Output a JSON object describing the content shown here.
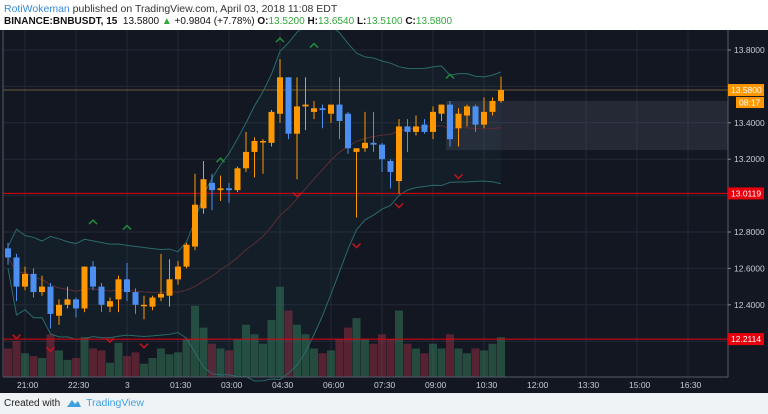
{
  "header": {
    "author": "RotiWokeman",
    "published": "published on TradingView.com, April 03, 2018 11:08 EDT",
    "symbol": "BINANCE:BNBUSDT, 15",
    "last": "13.5800",
    "change": "+0.9804 (+7.78%)",
    "o_label": "O:",
    "o": "13.5200",
    "h_label": "H:",
    "h": "13.6540",
    "l_label": "L:",
    "l": "13.5100",
    "c_label": "C:",
    "c": "13.5800"
  },
  "footer": {
    "created": "Created with",
    "brand": "TradingView"
  },
  "colors": {
    "up": "#ff9800",
    "down": "#4c8ff0",
    "bg": "#131722",
    "hline": "#e8000d",
    "price": "#ff9800"
  },
  "chart_data": {
    "type": "candlestick",
    "title": "BINANCE:BNBUSDT, 15",
    "ylim": [
      12.05,
      13.95
    ],
    "y_ticks": [
      "13.8000",
      "13.4000",
      "13.2000",
      "12.8000",
      "12.6000",
      "12.4000"
    ],
    "y_tick_values": [
      13.8,
      13.4,
      13.2,
      12.8,
      12.6,
      12.4
    ],
    "x_ticks": [
      "21:00",
      "22:30",
      "3",
      "01:30",
      "03:00",
      "04:30",
      "06:00",
      "07:30",
      "09:00",
      "10:30",
      "12:00",
      "13:30",
      "15:00",
      "16:30"
    ],
    "first_candle_time": "20:30",
    "interval_min": 15,
    "ohlc": [
      [
        12.71,
        12.74,
        12.62,
        12.66
      ],
      [
        12.66,
        12.68,
        12.42,
        12.5
      ],
      [
        12.5,
        12.61,
        12.48,
        12.57
      ],
      [
        12.57,
        12.6,
        12.44,
        12.47
      ],
      [
        12.47,
        12.56,
        12.45,
        12.5
      ],
      [
        12.5,
        12.52,
        12.27,
        12.35
      ],
      [
        12.34,
        12.43,
        12.29,
        12.4
      ],
      [
        12.4,
        12.5,
        12.38,
        12.43
      ],
      [
        12.43,
        12.44,
        12.33,
        12.38
      ],
      [
        12.38,
        12.61,
        12.36,
        12.61
      ],
      [
        12.61,
        12.64,
        12.48,
        12.5
      ],
      [
        12.5,
        12.52,
        12.36,
        12.4
      ],
      [
        12.39,
        12.44,
        12.36,
        12.42
      ],
      [
        12.43,
        12.56,
        12.36,
        12.54
      ],
      [
        12.54,
        12.63,
        12.42,
        12.47
      ],
      [
        12.47,
        12.49,
        12.35,
        12.4
      ],
      [
        12.4,
        12.45,
        12.32,
        12.4
      ],
      [
        12.39,
        12.45,
        12.37,
        12.44
      ],
      [
        12.44,
        12.68,
        12.42,
        12.46
      ],
      [
        12.45,
        12.65,
        12.39,
        12.54
      ],
      [
        12.54,
        12.64,
        12.51,
        12.61
      ],
      [
        12.61,
        12.74,
        12.6,
        12.73
      ],
      [
        12.72,
        13.12,
        12.7,
        12.95
      ],
      [
        12.93,
        13.19,
        12.9,
        13.09
      ],
      [
        13.07,
        13.12,
        12.92,
        13.03
      ],
      [
        13.03,
        13.11,
        12.97,
        13.04
      ],
      [
        13.04,
        13.07,
        12.96,
        13.03
      ],
      [
        13.03,
        13.16,
        13.02,
        13.15
      ],
      [
        13.15,
        13.35,
        13.13,
        13.24
      ],
      [
        13.24,
        13.32,
        13.1,
        13.3
      ],
      [
        13.3,
        13.31,
        13.12,
        13.3
      ],
      [
        13.29,
        13.47,
        13.27,
        13.46
      ],
      [
        13.45,
        13.75,
        13.4,
        13.65
      ],
      [
        13.65,
        13.65,
        13.31,
        13.34
      ],
      [
        13.34,
        13.65,
        13.09,
        13.49
      ],
      [
        13.49,
        13.65,
        13.36,
        13.5
      ],
      [
        13.46,
        13.52,
        13.42,
        13.48
      ],
      [
        13.48,
        13.5,
        13.37,
        13.47
      ],
      [
        13.45,
        13.5,
        13.4,
        13.5
      ],
      [
        13.5,
        13.65,
        13.31,
        13.41
      ],
      [
        13.45,
        13.46,
        13.23,
        13.26
      ],
      [
        13.24,
        13.26,
        12.88,
        13.26
      ],
      [
        13.26,
        13.46,
        13.24,
        13.29
      ],
      [
        13.29,
        13.46,
        13.24,
        13.28
      ],
      [
        13.28,
        13.29,
        13.13,
        13.2
      ],
      [
        13.19,
        13.2,
        13.04,
        13.13
      ],
      [
        13.08,
        13.42,
        13.01,
        13.38
      ],
      [
        13.38,
        13.42,
        13.24,
        13.35
      ],
      [
        13.35,
        13.44,
        13.33,
        13.38
      ],
      [
        13.39,
        13.42,
        13.34,
        13.35
      ],
      [
        13.35,
        13.49,
        13.31,
        13.46
      ],
      [
        13.45,
        13.5,
        13.41,
        13.5
      ],
      [
        13.5,
        13.52,
        13.27,
        13.31
      ],
      [
        13.37,
        13.48,
        13.27,
        13.45
      ],
      [
        13.44,
        13.5,
        13.38,
        13.49
      ],
      [
        13.49,
        13.5,
        13.35,
        13.39
      ],
      [
        13.39,
        13.54,
        13.37,
        13.46
      ],
      [
        13.46,
        13.54,
        13.44,
        13.52
      ],
      [
        13.52,
        13.654,
        13.51,
        13.58
      ]
    ],
    "volume": [
      30,
      38,
      25,
      22,
      20,
      45,
      28,
      18,
      20,
      42,
      30,
      28,
      15,
      36,
      22,
      26,
      14,
      20,
      30,
      24,
      26,
      40,
      75,
      52,
      35,
      30,
      28,
      40,
      55,
      45,
      35,
      60,
      95,
      70,
      55,
      45,
      30,
      25,
      28,
      40,
      52,
      62,
      40,
      35,
      45,
      40,
      70,
      35,
      30,
      25,
      35,
      30,
      45,
      30,
      25,
      30,
      28,
      35,
      42
    ],
    "price_lines": [
      {
        "label": "13.0119",
        "value": 13.0119
      },
      {
        "label": "12.2114",
        "value": 12.2114
      }
    ],
    "last_price": {
      "label": "13.5800",
      "value": 13.58,
      "countdown": "08:17"
    },
    "box": {
      "from_index": 52,
      "top": 13.52,
      "bottom": 13.25
    },
    "markers_up": [
      [
        32,
        13.86
      ],
      [
        36,
        13.83
      ],
      [
        25,
        13.2
      ],
      [
        10,
        12.86
      ],
      [
        14,
        12.83
      ],
      [
        52,
        13.66
      ]
    ],
    "markers_down": [
      [
        1,
        12.22
      ],
      [
        5,
        12.15
      ],
      [
        12,
        12.2
      ],
      [
        16,
        12.17
      ],
      [
        34,
        13.0
      ],
      [
        46,
        12.94
      ],
      [
        41,
        12.72
      ],
      [
        53,
        13.1
      ]
    ]
  }
}
